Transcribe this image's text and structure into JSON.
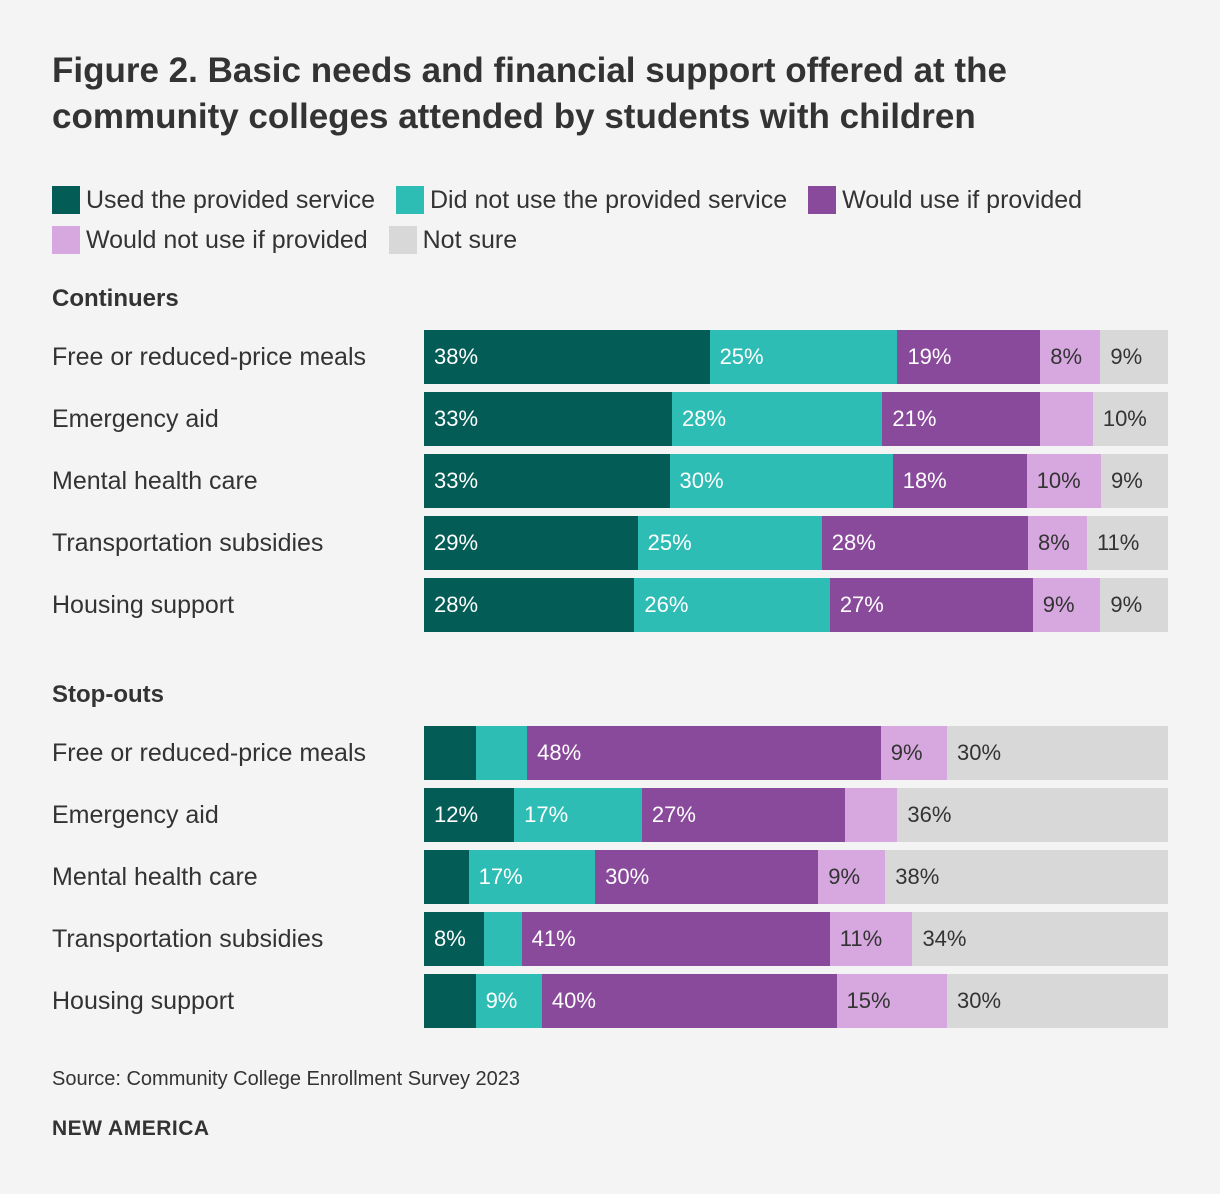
{
  "title": "Figure 2. Basic needs and financial support offered at the community colleges attended by students with children",
  "legend": [
    {
      "label": "Used the provided service",
      "color": "#035c55"
    },
    {
      "label": "Did not use the provided service",
      "color": "#2ebdb4"
    },
    {
      "label": "Would use if provided",
      "color": "#8a4a9b"
    },
    {
      "label": "Would not use if provided",
      "color": "#d7a8df"
    },
    {
      "label": "Not sure",
      "color": "#d8d8d8"
    }
  ],
  "source": "Source: Community College Enrollment Survey 2023",
  "brand": "NEW AMERICA",
  "chart_data": {
    "type": "bar",
    "orientation": "horizontal",
    "stacked": true,
    "series_names": [
      "Used the provided service",
      "Did not use the provided service",
      "Would use if provided",
      "Would not use if provided",
      "Not sure"
    ],
    "groups": [
      {
        "name": "Continuers",
        "rows": [
          {
            "category": "Free or reduced-price meals",
            "values": [
              38,
              25,
              19,
              8,
              9
            ],
            "labels": [
              "38%",
              "25%",
              "19%",
              "8%",
              "9%"
            ]
          },
          {
            "category": "Emergency aid",
            "values": [
              33,
              28,
              21,
              7,
              10
            ],
            "labels": [
              "33%",
              "28%",
              "21%",
              "",
              "10%"
            ]
          },
          {
            "category": "Mental health care",
            "values": [
              33,
              30,
              18,
              10,
              9
            ],
            "labels": [
              "33%",
              "30%",
              "18%",
              "10%",
              "9%"
            ]
          },
          {
            "category": "Transportation subsidies",
            "values": [
              29,
              25,
              28,
              8,
              11
            ],
            "labels": [
              "29%",
              "25%",
              "28%",
              "8%",
              "11%"
            ]
          },
          {
            "category": "Housing support",
            "values": [
              28,
              26,
              27,
              9,
              9
            ],
            "labels": [
              "28%",
              "26%",
              "27%",
              "9%",
              "9%"
            ]
          }
        ]
      },
      {
        "name": "Stop-outs",
        "rows": [
          {
            "category": "Free or reduced-price meals",
            "values": [
              7,
              7,
              48,
              9,
              30
            ],
            "labels": [
              "",
              "",
              "48%",
              "9%",
              "30%"
            ]
          },
          {
            "category": "Emergency aid",
            "values": [
              12,
              17,
              27,
              7,
              36
            ],
            "labels": [
              "12%",
              "17%",
              "27%",
              "",
              "36%"
            ]
          },
          {
            "category": "Mental health care",
            "values": [
              6,
              17,
              30,
              9,
              38
            ],
            "labels": [
              "",
              "17%",
              "30%",
              "9%",
              "38%"
            ]
          },
          {
            "category": "Transportation subsidies",
            "values": [
              8,
              5,
              41,
              11,
              34
            ],
            "labels": [
              "8%",
              "",
              "41%",
              "11%",
              "34%"
            ]
          },
          {
            "category": "Housing support",
            "values": [
              7,
              9,
              40,
              15,
              30
            ],
            "labels": [
              "",
              "9%",
              "40%",
              "15%",
              "30%"
            ]
          }
        ]
      }
    ]
  }
}
